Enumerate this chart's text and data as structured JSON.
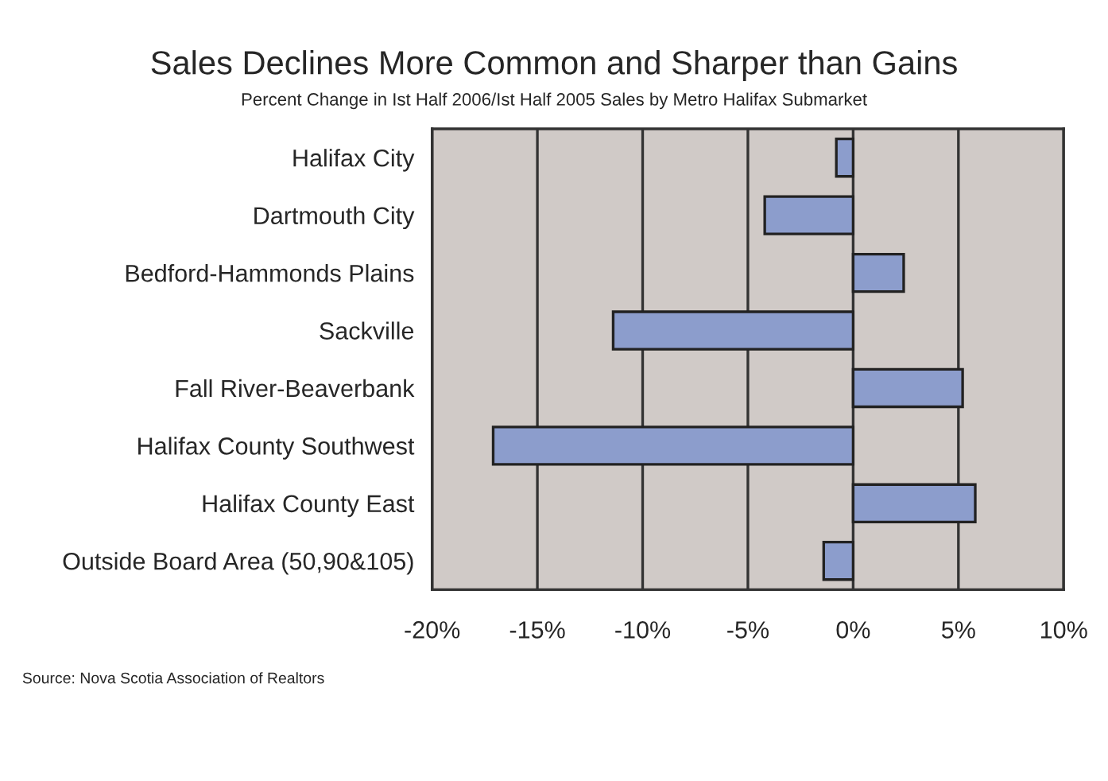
{
  "chart_data": {
    "type": "bar",
    "orientation": "horizontal",
    "title": "Sales Declines More Common and Sharper than Gains",
    "subtitle": "Percent Change in Ist Half 2006/Ist Half 2005 Sales by Metro Halifax Submarket",
    "categories": [
      "Halifax City",
      "Dartmouth City",
      "Bedford-Hammonds Plains",
      "Sackville",
      "Fall River-Beaverbank",
      "Halifax County Southwest",
      "Halifax County East",
      "Outside Board Area (50,90&105)"
    ],
    "values": [
      -0.8,
      -4.2,
      2.4,
      -11.4,
      5.2,
      -17.1,
      5.8,
      -1.4
    ],
    "color": "#8c9dcc",
    "xlim": [
      -20,
      10
    ],
    "xticks": [
      {
        "value": -20,
        "label": "-20%"
      },
      {
        "value": -15,
        "label": "-15%"
      },
      {
        "value": -10,
        "label": "-10%"
      },
      {
        "value": -5,
        "label": "-5%"
      },
      {
        "value": 0,
        "label": "0%"
      },
      {
        "value": 5,
        "label": "5%"
      },
      {
        "value": 10,
        "label": "10%"
      }
    ],
    "grid": "x",
    "legend": false,
    "annotations": [
      "Source: Nova Scotia Association of Realtors"
    ]
  }
}
